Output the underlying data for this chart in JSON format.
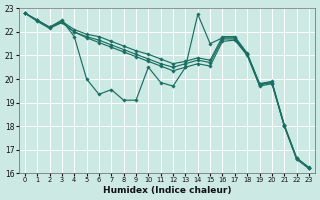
{
  "xlabel": "Humidex (Indice chaleur)",
  "bg_color": "#cce9e4",
  "grid_color": "#ffffff",
  "line_color": "#1a6e62",
  "xlim": [
    -0.5,
    23.5
  ],
  "ylim": [
    16,
    23
  ],
  "yticks": [
    16,
    17,
    18,
    19,
    20,
    21,
    22,
    23
  ],
  "xticks": [
    0,
    1,
    2,
    3,
    4,
    5,
    6,
    7,
    8,
    9,
    10,
    11,
    12,
    13,
    14,
    15,
    16,
    17,
    18,
    19,
    20,
    21,
    22,
    23
  ],
  "series": [
    [
      22.8,
      22.5,
      22.2,
      22.5,
      21.8,
      20.0,
      19.35,
      19.55,
      19.1,
      19.1,
      20.5,
      19.85,
      19.7,
      20.5,
      22.75,
      21.5,
      21.75,
      21.75,
      21.05,
      19.8,
      19.85,
      18.05,
      16.65,
      16.2
    ],
    [
      22.8,
      22.45,
      22.15,
      22.4,
      22.0,
      21.75,
      21.55,
      21.35,
      21.15,
      20.95,
      20.75,
      20.55,
      20.35,
      20.5,
      20.65,
      20.55,
      21.6,
      21.65,
      21.0,
      19.7,
      19.8,
      18.0,
      16.6,
      16.2
    ],
    [
      22.8,
      22.5,
      22.2,
      22.4,
      22.0,
      21.8,
      21.65,
      21.45,
      21.25,
      21.05,
      20.85,
      20.65,
      20.5,
      20.65,
      20.8,
      20.7,
      21.7,
      21.7,
      21.05,
      19.75,
      19.85,
      18.0,
      16.6,
      16.2
    ],
    [
      22.8,
      22.5,
      22.2,
      22.45,
      22.1,
      21.9,
      21.8,
      21.6,
      21.4,
      21.2,
      21.05,
      20.85,
      20.65,
      20.75,
      20.9,
      20.8,
      21.8,
      21.8,
      21.1,
      19.8,
      19.9,
      18.05,
      16.65,
      16.25
    ]
  ]
}
